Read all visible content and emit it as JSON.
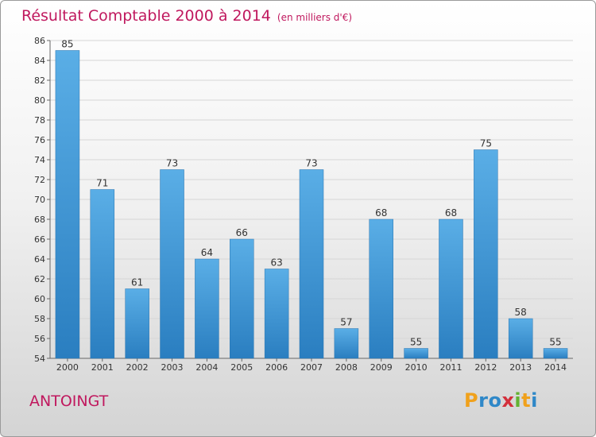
{
  "title": "Résultat Comptable 2000 à 2014",
  "unit": "(en milliers d'€)",
  "town": "ANTOINGT",
  "logo": {
    "p": "P",
    "r": "r",
    "o": "o",
    "x": "x",
    "i": "i",
    "t": "t",
    "i2": "i"
  },
  "chart_data": {
    "type": "bar",
    "categories": [
      "2000",
      "2001",
      "2002",
      "2003",
      "2004",
      "2005",
      "2006",
      "2007",
      "2008",
      "2009",
      "2010",
      "2011",
      "2012",
      "2013",
      "2014"
    ],
    "values": [
      85,
      71,
      61,
      73,
      64,
      66,
      63,
      73,
      57,
      68,
      55,
      68,
      75,
      58,
      55
    ],
    "ylim": [
      54,
      86
    ],
    "yticks": [
      54,
      56,
      58,
      60,
      62,
      64,
      66,
      68,
      70,
      72,
      74,
      76,
      78,
      80,
      82,
      84,
      86
    ],
    "grid": true,
    "bar_color": "#2f86c8",
    "bar_color_light": "#5aaee6"
  }
}
